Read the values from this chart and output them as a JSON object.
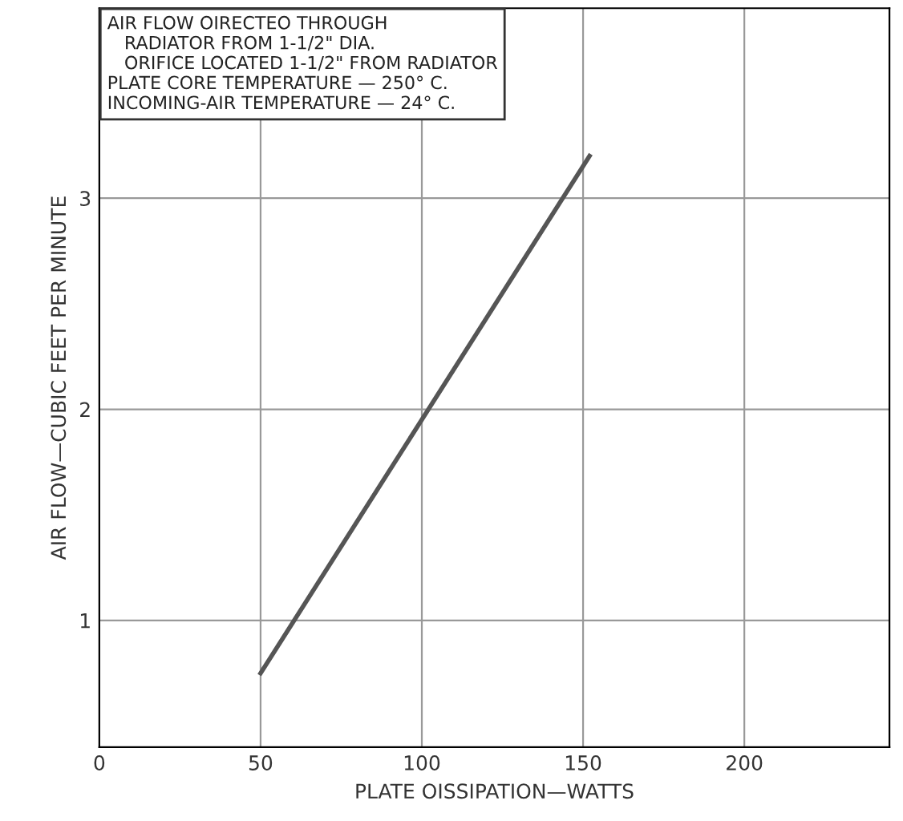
{
  "chart_data": {
    "type": "line",
    "annotations": [
      "AIR FLOW OIRECTEO THROUGH\n   RADIATOR FROM 1-1/2\" DIA.\n   ORIFICE LOCATED 1-1/2\" FROM RADIATOR\nPLATE CORE TEMPERATURE — 250° C.\nINCOMING-AIR TEMPERATURE — 24° C."
    ],
    "xlabel": "PLATE OISSIPATION—WATTS",
    "ylabel": "AIR FLOW—CUBIC FEET PER MINUTE",
    "series": [
      {
        "color": "#555555",
        "x": [
          50,
          152
        ],
        "values": [
          0.75,
          3.2
        ]
      }
    ],
    "xlim": [
      0,
      245
    ],
    "xticks": [
      0,
      50,
      100,
      150,
      200
    ],
    "ylim": [
      0.4,
      3.9
    ],
    "yticks": [
      1,
      2,
      3
    ],
    "grid": true,
    "marker": "none",
    "line_style": "solid"
  }
}
